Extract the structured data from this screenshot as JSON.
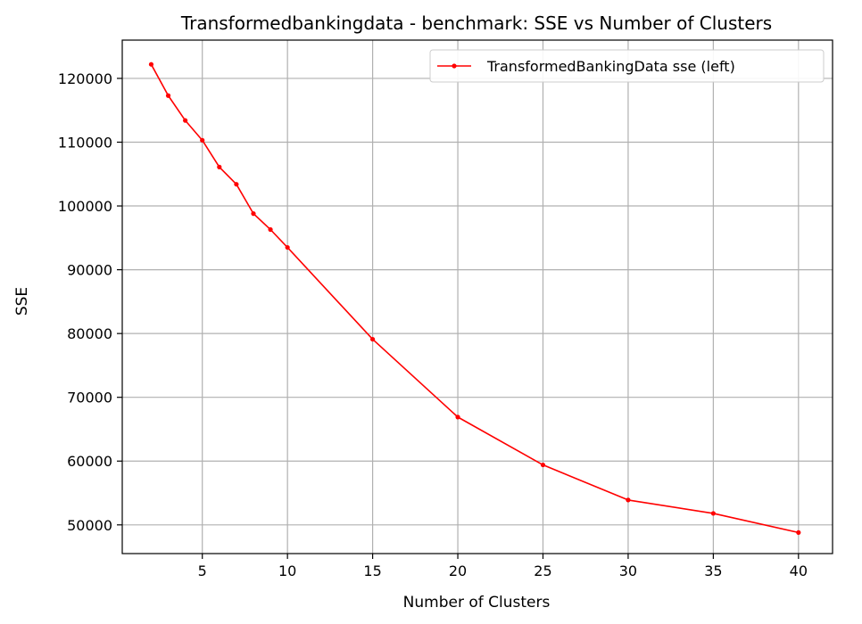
{
  "chart_data": {
    "type": "line",
    "title": "Transformedbankingdata - benchmark: SSE vs Number of Clusters",
    "xlabel": "Number of Clusters",
    "ylabel": "SSE",
    "xlim": [
      0.3,
      42
    ],
    "ylim": [
      45500,
      126000
    ],
    "xticks": [
      5,
      10,
      15,
      20,
      25,
      30,
      35,
      40
    ],
    "yticks": [
      50000,
      60000,
      70000,
      80000,
      90000,
      100000,
      110000,
      120000
    ],
    "grid": true,
    "legend_position": "top-right",
    "series": [
      {
        "name": "TransformedBankingData sse (left)",
        "color": "#ff0000",
        "x": [
          2,
          3,
          4,
          5,
          6,
          7,
          8,
          9,
          10,
          15,
          20,
          25,
          30,
          35,
          40
        ],
        "y": [
          122200,
          117300,
          113400,
          110300,
          106100,
          103400,
          98800,
          96300,
          93500,
          79100,
          66900,
          59400,
          53900,
          51800,
          48800
        ]
      }
    ]
  }
}
